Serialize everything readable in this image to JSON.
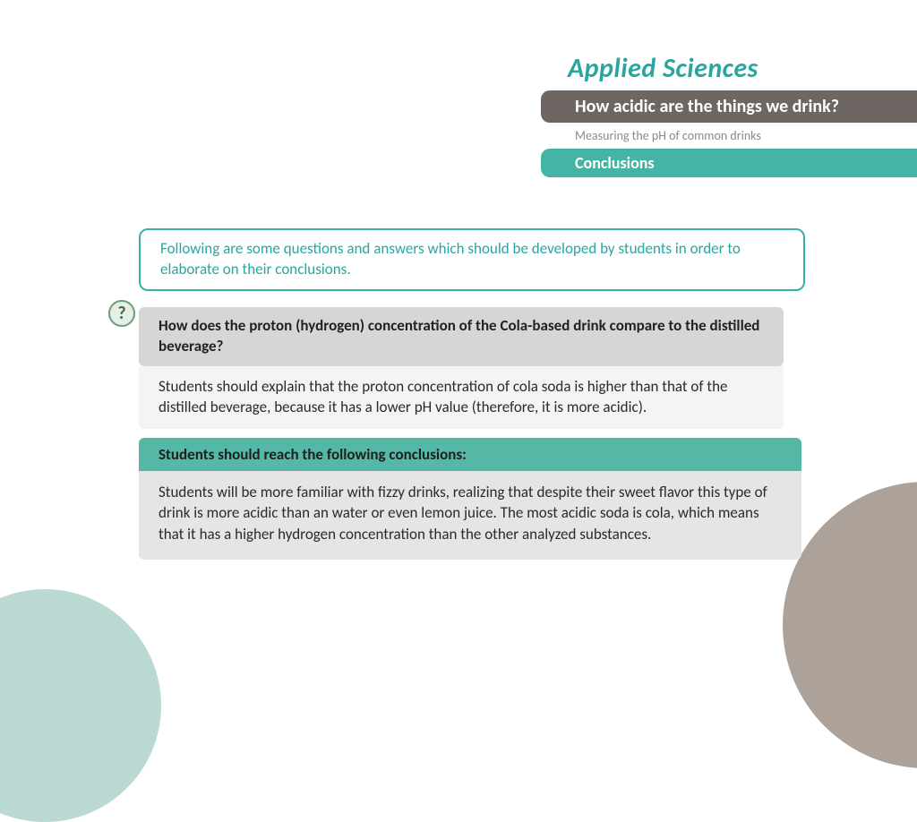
{
  "colors": {
    "brand": "#2aa6a0",
    "topic_bar": "#6e6663",
    "section_bar": "#45b4a5",
    "instruction_border": "#34b3a0",
    "instruction_text": "#2aa6a0",
    "question_bg": "#d6d6d4",
    "question_text": "#222222",
    "answer_bg": "#f4f4f2",
    "answer_text": "#2b2b2b",
    "conclusion_header_bg": "#55b7a5",
    "conclusion_header_text": "#1f1f1f",
    "conclusion_body_bg": "#e7e5e3",
    "conclusion_body_text": "#2b2b2b",
    "subtitle_text": "#8a8a88",
    "icon_bg": "#e6efe7",
    "icon_border": "#6aa079",
    "icon_text": "#3d6b4a",
    "deco_left": "#b9d9d2",
    "deco_right": "#ada29a"
  },
  "header": {
    "brand": "Applied Sciences",
    "topic": "How acidic are the things we drink?",
    "subtitle": "Measuring the pH of common drinks",
    "section": "Conclusions"
  },
  "instruction": "Following are some questions and answers which should be developed by students in order to elaborate on their conclusions.",
  "qa": {
    "question": "How does the proton (hydrogen) concentration of the Cola-based drink compare to the distilled beverage?",
    "answer": "Students should explain that the proton concentration of cola soda is higher than that of the distilled beverage, because it has a lower pH value (therefore, it is more acidic)."
  },
  "conclusion": {
    "header": "Students should reach the following conclusions:",
    "body": "Students will be more familiar with fizzy drinks, realizing that despite their sweet flavor this type of drink is more acidic than an water or even lemon juice. The most acidic soda is cola, which means that it has a higher hydrogen concentration than the other analyzed substances."
  },
  "icon": {
    "glyph": "?"
  }
}
